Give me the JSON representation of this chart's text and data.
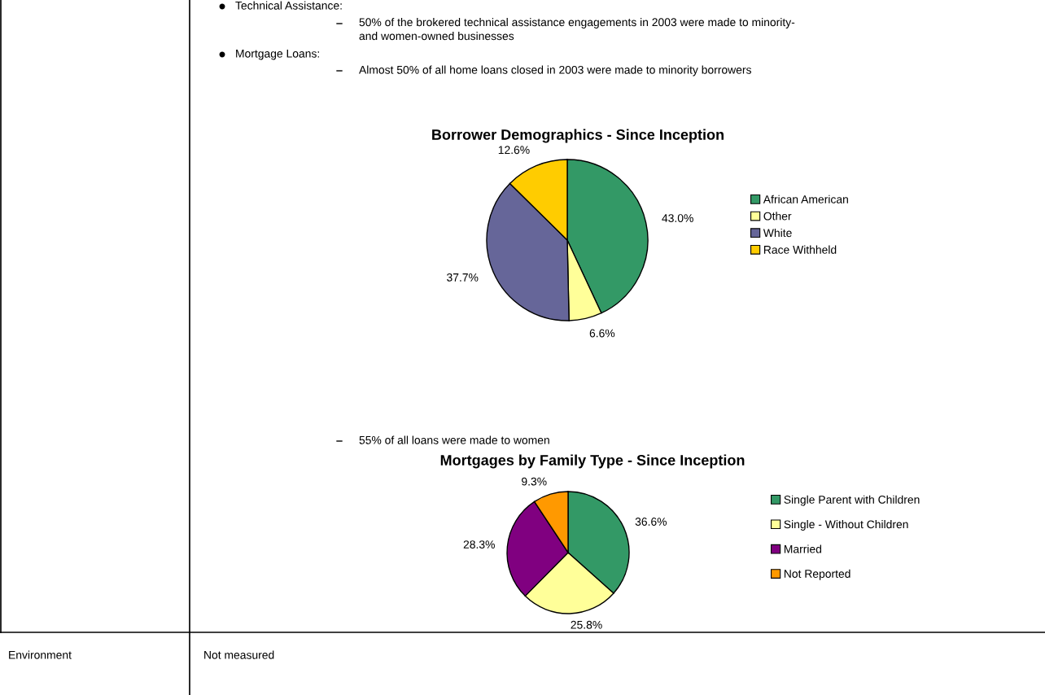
{
  "chart_data": [
    {
      "type": "pie",
      "title": "Borrower Demographics - Since Inception",
      "categories": [
        "African American",
        "Other",
        "White",
        "Race Withheld"
      ],
      "values": [
        43.0,
        6.6,
        37.7,
        12.6
      ],
      "colors": [
        "#339966",
        "#ffff99",
        "#666699",
        "#ffcc00"
      ],
      "value_labels": [
        "43.0%",
        "6.6%",
        "37.7%",
        "12.6%"
      ],
      "legend": "right",
      "annotations": [
        "Technical Assistance:",
        "50% of the brokered technical assistance engagements in 2003 were made to minority-\nand women-owned businesses",
        "Mortgage Loans:",
        "Almost 50% of all home loans closed in 2003 were made to minority borrowers"
      ]
    },
    {
      "type": "pie",
      "title": "Mortgages by Family Type - Since Inception",
      "categories": [
        "Single Parent with Children",
        "Single - Without Children",
        "Married",
        "Not Reported"
      ],
      "values": [
        36.6,
        25.8,
        28.3,
        9.3
      ],
      "colors": [
        "#339966",
        "#ffff99",
        "#800080",
        "#ff9900"
      ],
      "value_labels": [
        "36.6%",
        "25.8%",
        "28.3%",
        "9.3%"
      ],
      "legend": "right",
      "annotations": [
        "55% of all loans were made to women",
        "Environment",
        "Not measured"
      ]
    }
  ]
}
